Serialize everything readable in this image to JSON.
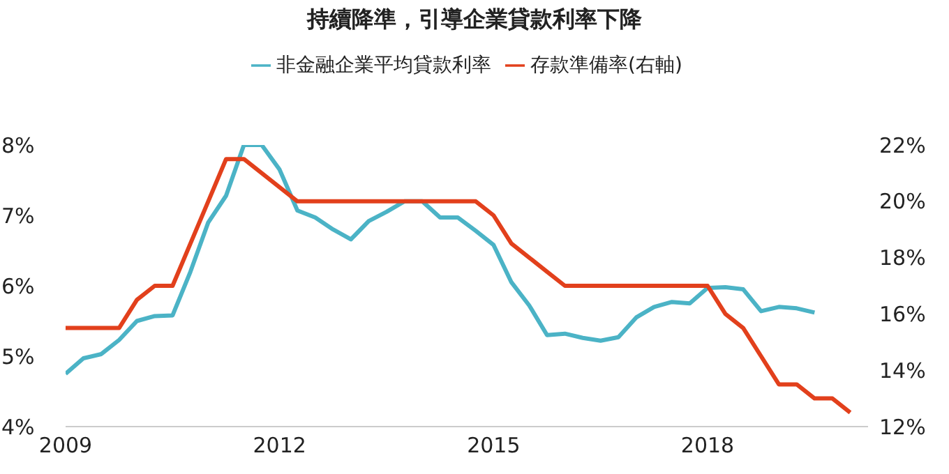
{
  "chart_data": {
    "type": "line",
    "title": "持續降準，引導企業貸款利率下降",
    "x": [
      2009,
      2009.25,
      2009.5,
      2009.75,
      2010,
      2010.25,
      2010.5,
      2010.75,
      2011,
      2011.25,
      2011.5,
      2011.75,
      2012,
      2012.25,
      2012.5,
      2012.75,
      2013,
      2013.25,
      2013.5,
      2013.75,
      2014,
      2014.25,
      2014.5,
      2014.75,
      2015,
      2015.25,
      2015.5,
      2015.75,
      2016,
      2016.25,
      2016.5,
      2016.75,
      2017,
      2017.25,
      2017.5,
      2017.75,
      2018,
      2018.25,
      2018.5,
      2018.75,
      2019,
      2019.25,
      2019.5,
      2019.75,
      2020
    ],
    "series": [
      {
        "name": "非金融企業平均貸款利率",
        "color": "#4bb3c6",
        "values": [
          4.75,
          4.97,
          5.03,
          5.23,
          5.5,
          5.57,
          5.58,
          6.2,
          6.9,
          7.28,
          8.0,
          8.0,
          7.65,
          7.07,
          6.97,
          6.8,
          6.66,
          6.92,
          7.05,
          7.2,
          7.2,
          6.97,
          6.97,
          6.78,
          6.58,
          6.05,
          5.72,
          5.3,
          5.32,
          5.26,
          5.22,
          5.27,
          5.55,
          5.7,
          5.77,
          5.75,
          5.97,
          5.98,
          5.95,
          5.64,
          5.7,
          5.68,
          5.62,
          null,
          null
        ]
      },
      {
        "name": "存款準備率(右軸)",
        "color": "#e2401c",
        "axis": "y2",
        "values": [
          15.5,
          15.5,
          15.5,
          15.5,
          16.5,
          17,
          17,
          18.5,
          20,
          21.5,
          21.5,
          21,
          20.5,
          20,
          20,
          20,
          20,
          20,
          20,
          20,
          20,
          20,
          20,
          20,
          19.5,
          18.5,
          18,
          17.5,
          17,
          17,
          17,
          17,
          17,
          17,
          17,
          17,
          17,
          16,
          15.5,
          14.5,
          13.5,
          13.5,
          13,
          13,
          12.5
        ]
      }
    ],
    "xlim": [
      2009,
      2020.25
    ],
    "xticks": [
      2009,
      2012,
      2015,
      2018
    ],
    "ylim": [
      4,
      8
    ],
    "yticks": [
      {
        "value": 4,
        "label": "4%"
      },
      {
        "value": 5,
        "label": "5%"
      },
      {
        "value": 6,
        "label": "6%"
      },
      {
        "value": 7,
        "label": "7%"
      },
      {
        "value": 8,
        "label": "8%"
      }
    ],
    "y2lim": [
      12,
      22
    ],
    "y2ticks": [
      {
        "value": 12,
        "label": "12%"
      },
      {
        "value": 14,
        "label": "14%"
      },
      {
        "value": 16,
        "label": "16%"
      },
      {
        "value": 18,
        "label": "18%"
      },
      {
        "value": 20,
        "label": "20%"
      },
      {
        "value": 22,
        "label": "22%"
      }
    ],
    "legend": "top",
    "marker": "none",
    "line_style": "solid"
  }
}
